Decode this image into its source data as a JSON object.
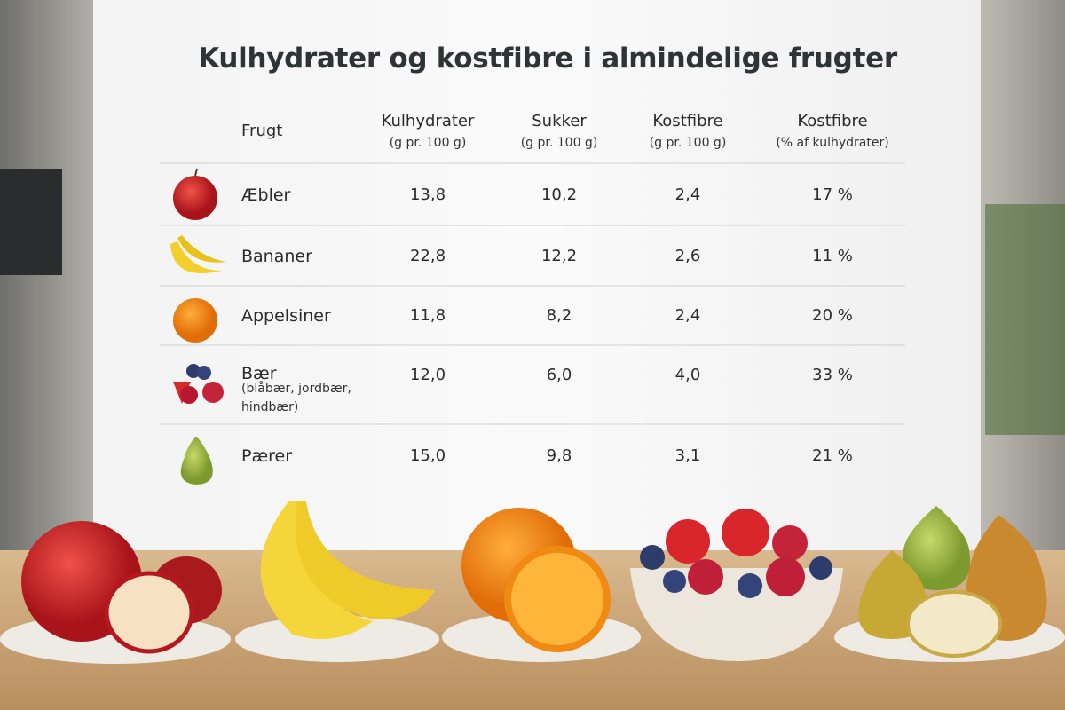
{
  "title": "Kulhydrater og kostfibre i almindelige frugter",
  "table": {
    "columns": [
      {
        "name": "Frugt"
      },
      {
        "name": "Kulhydrater",
        "unit": "(g pr. 100 g)"
      },
      {
        "name": "Sukker",
        "unit": "(g pr. 100 g)"
      },
      {
        "name": "Kostfibre",
        "unit": "(g pr. 100 g)"
      },
      {
        "name": "Kostfibre",
        "unit": "(% af kulhydrater)"
      }
    ],
    "rows": [
      {
        "fruit": "Æbler",
        "cells": [
          "13,8",
          "10,2",
          "2,4",
          "17 %"
        ]
      },
      {
        "fruit": "Bananer",
        "cells": [
          "22,8",
          "12,2",
          "2,6",
          "11 %"
        ]
      },
      {
        "fruit": "Appelsiner",
        "cells": [
          "11,8",
          "8,2",
          "2,4",
          "20 %"
        ]
      },
      {
        "fruit": "Bær",
        "note": [
          "(blåbær, jordbær,",
          "hindbær)"
        ],
        "cells": [
          "12,0",
          "6,0",
          "4,0",
          "33 %"
        ]
      },
      {
        "fruit": "Pærer",
        "cells": [
          "15,0",
          "9,8",
          "3,1",
          "21 %"
        ]
      }
    ]
  }
}
